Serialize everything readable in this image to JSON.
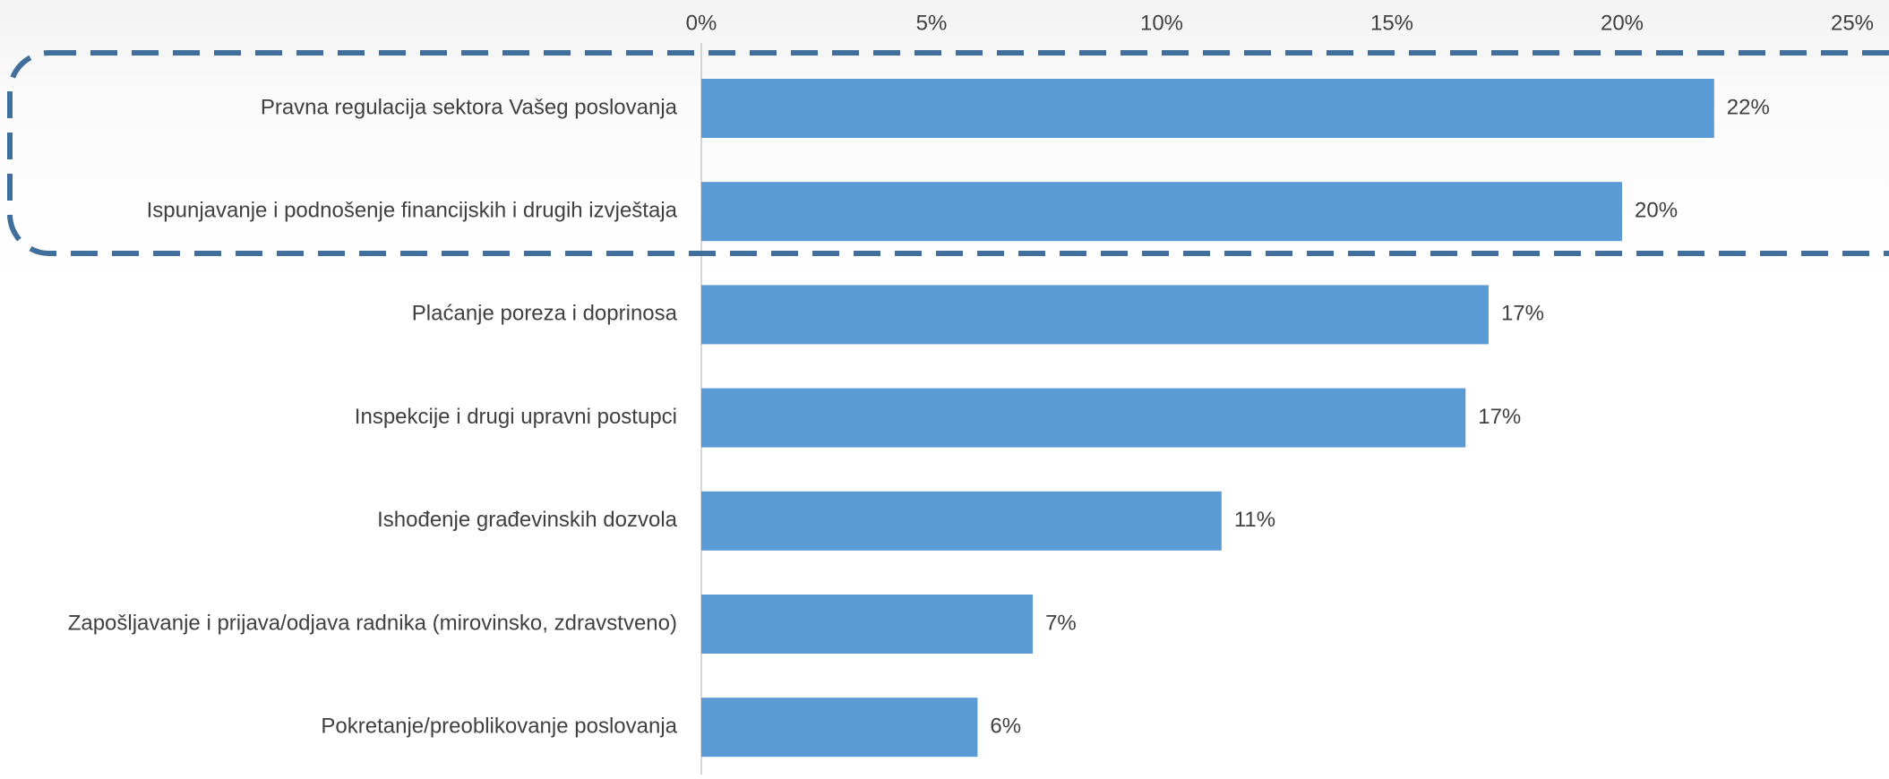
{
  "chart_data": {
    "type": "bar",
    "orientation": "horizontal",
    "title": "",
    "xlabel": "",
    "ylabel": "",
    "categories": [
      "Pravna regulacija sektora Vašeg poslovanja",
      "Ispunjavanje i podnošenje financijskih i drugih izvještaja",
      "Plaćanje poreza i doprinosa",
      "Inspekcije i drugi upravni postupci",
      "Ishođenje građevinskih dozvola",
      "Zapošljavanje i prijava/odjava radnika (mirovinsko, zdravstveno)",
      "Pokretanje/preoblikovanje poslovanja"
    ],
    "values": [
      22,
      20,
      17,
      17,
      11,
      7,
      6
    ],
    "display_values": [
      22.0,
      20.0,
      17.1,
      16.6,
      11.3,
      7.2,
      6.0
    ],
    "value_labels": [
      "22%",
      "20%",
      "17%",
      "17%",
      "11%",
      "7%",
      "6%"
    ],
    "xlim": [
      0,
      25
    ],
    "x_ticks": [
      0,
      5,
      10,
      15,
      20,
      25
    ],
    "x_tick_labels": [
      "0%",
      "5%",
      "10%",
      "15%",
      "20%",
      "25%"
    ],
    "x_axis_position": "top",
    "grid": false,
    "legend": "none",
    "highlight": {
      "style": "dashed-rounded-box",
      "covers_categories": [
        0,
        1
      ]
    },
    "colors": {
      "bar": "#5b9bd5",
      "highlight": "#3f6f9a",
      "text": "#404040",
      "axis": "#c8c8c8"
    }
  }
}
